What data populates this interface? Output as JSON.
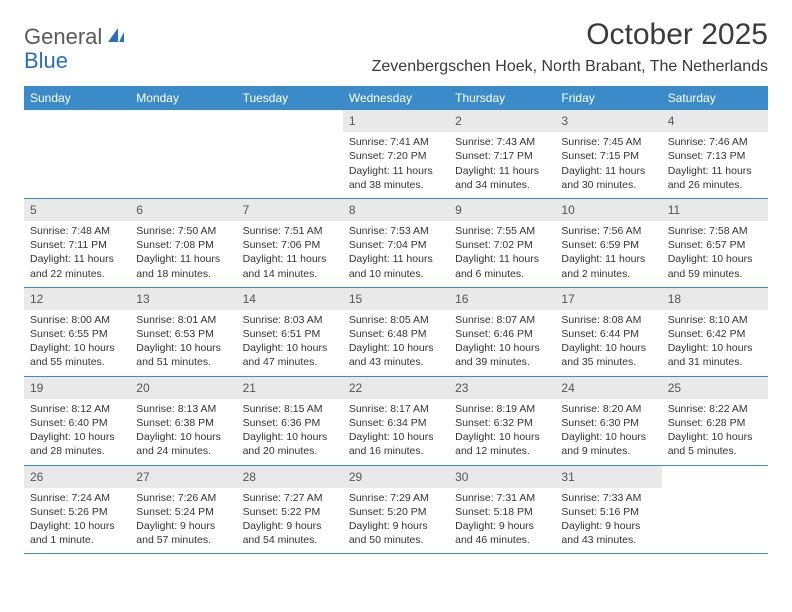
{
  "brand": {
    "text1": "General",
    "text2": "Blue"
  },
  "title": "October 2025",
  "location": "Zevenbergschen Hoek, North Brabant, The Netherlands",
  "colors": {
    "header_bg": "#3b8bc8",
    "header_text": "#ffffff",
    "daynum_bg": "#e9e9e9",
    "row_border": "#3b8bc8",
    "body_text": "#333333",
    "logo_gray": "#5a5a5a",
    "logo_blue": "#2a6fb5"
  },
  "weekdays": [
    "Sunday",
    "Monday",
    "Tuesday",
    "Wednesday",
    "Thursday",
    "Friday",
    "Saturday"
  ],
  "weeks": [
    [
      {
        "n": "",
        "sr": "",
        "ss": "",
        "dl": ""
      },
      {
        "n": "",
        "sr": "",
        "ss": "",
        "dl": ""
      },
      {
        "n": "",
        "sr": "",
        "ss": "",
        "dl": ""
      },
      {
        "n": "1",
        "sr": "Sunrise: 7:41 AM",
        "ss": "Sunset: 7:20 PM",
        "dl": "Daylight: 11 hours and 38 minutes."
      },
      {
        "n": "2",
        "sr": "Sunrise: 7:43 AM",
        "ss": "Sunset: 7:17 PM",
        "dl": "Daylight: 11 hours and 34 minutes."
      },
      {
        "n": "3",
        "sr": "Sunrise: 7:45 AM",
        "ss": "Sunset: 7:15 PM",
        "dl": "Daylight: 11 hours and 30 minutes."
      },
      {
        "n": "4",
        "sr": "Sunrise: 7:46 AM",
        "ss": "Sunset: 7:13 PM",
        "dl": "Daylight: 11 hours and 26 minutes."
      }
    ],
    [
      {
        "n": "5",
        "sr": "Sunrise: 7:48 AM",
        "ss": "Sunset: 7:11 PM",
        "dl": "Daylight: 11 hours and 22 minutes."
      },
      {
        "n": "6",
        "sr": "Sunrise: 7:50 AM",
        "ss": "Sunset: 7:08 PM",
        "dl": "Daylight: 11 hours and 18 minutes."
      },
      {
        "n": "7",
        "sr": "Sunrise: 7:51 AM",
        "ss": "Sunset: 7:06 PM",
        "dl": "Daylight: 11 hours and 14 minutes."
      },
      {
        "n": "8",
        "sr": "Sunrise: 7:53 AM",
        "ss": "Sunset: 7:04 PM",
        "dl": "Daylight: 11 hours and 10 minutes."
      },
      {
        "n": "9",
        "sr": "Sunrise: 7:55 AM",
        "ss": "Sunset: 7:02 PM",
        "dl": "Daylight: 11 hours and 6 minutes."
      },
      {
        "n": "10",
        "sr": "Sunrise: 7:56 AM",
        "ss": "Sunset: 6:59 PM",
        "dl": "Daylight: 11 hours and 2 minutes."
      },
      {
        "n": "11",
        "sr": "Sunrise: 7:58 AM",
        "ss": "Sunset: 6:57 PM",
        "dl": "Daylight: 10 hours and 59 minutes."
      }
    ],
    [
      {
        "n": "12",
        "sr": "Sunrise: 8:00 AM",
        "ss": "Sunset: 6:55 PM",
        "dl": "Daylight: 10 hours and 55 minutes."
      },
      {
        "n": "13",
        "sr": "Sunrise: 8:01 AM",
        "ss": "Sunset: 6:53 PM",
        "dl": "Daylight: 10 hours and 51 minutes."
      },
      {
        "n": "14",
        "sr": "Sunrise: 8:03 AM",
        "ss": "Sunset: 6:51 PM",
        "dl": "Daylight: 10 hours and 47 minutes."
      },
      {
        "n": "15",
        "sr": "Sunrise: 8:05 AM",
        "ss": "Sunset: 6:48 PM",
        "dl": "Daylight: 10 hours and 43 minutes."
      },
      {
        "n": "16",
        "sr": "Sunrise: 8:07 AM",
        "ss": "Sunset: 6:46 PM",
        "dl": "Daylight: 10 hours and 39 minutes."
      },
      {
        "n": "17",
        "sr": "Sunrise: 8:08 AM",
        "ss": "Sunset: 6:44 PM",
        "dl": "Daylight: 10 hours and 35 minutes."
      },
      {
        "n": "18",
        "sr": "Sunrise: 8:10 AM",
        "ss": "Sunset: 6:42 PM",
        "dl": "Daylight: 10 hours and 31 minutes."
      }
    ],
    [
      {
        "n": "19",
        "sr": "Sunrise: 8:12 AM",
        "ss": "Sunset: 6:40 PM",
        "dl": "Daylight: 10 hours and 28 minutes."
      },
      {
        "n": "20",
        "sr": "Sunrise: 8:13 AM",
        "ss": "Sunset: 6:38 PM",
        "dl": "Daylight: 10 hours and 24 minutes."
      },
      {
        "n": "21",
        "sr": "Sunrise: 8:15 AM",
        "ss": "Sunset: 6:36 PM",
        "dl": "Daylight: 10 hours and 20 minutes."
      },
      {
        "n": "22",
        "sr": "Sunrise: 8:17 AM",
        "ss": "Sunset: 6:34 PM",
        "dl": "Daylight: 10 hours and 16 minutes."
      },
      {
        "n": "23",
        "sr": "Sunrise: 8:19 AM",
        "ss": "Sunset: 6:32 PM",
        "dl": "Daylight: 10 hours and 12 minutes."
      },
      {
        "n": "24",
        "sr": "Sunrise: 8:20 AM",
        "ss": "Sunset: 6:30 PM",
        "dl": "Daylight: 10 hours and 9 minutes."
      },
      {
        "n": "25",
        "sr": "Sunrise: 8:22 AM",
        "ss": "Sunset: 6:28 PM",
        "dl": "Daylight: 10 hours and 5 minutes."
      }
    ],
    [
      {
        "n": "26",
        "sr": "Sunrise: 7:24 AM",
        "ss": "Sunset: 5:26 PM",
        "dl": "Daylight: 10 hours and 1 minute."
      },
      {
        "n": "27",
        "sr": "Sunrise: 7:26 AM",
        "ss": "Sunset: 5:24 PM",
        "dl": "Daylight: 9 hours and 57 minutes."
      },
      {
        "n": "28",
        "sr": "Sunrise: 7:27 AM",
        "ss": "Sunset: 5:22 PM",
        "dl": "Daylight: 9 hours and 54 minutes."
      },
      {
        "n": "29",
        "sr": "Sunrise: 7:29 AM",
        "ss": "Sunset: 5:20 PM",
        "dl": "Daylight: 9 hours and 50 minutes."
      },
      {
        "n": "30",
        "sr": "Sunrise: 7:31 AM",
        "ss": "Sunset: 5:18 PM",
        "dl": "Daylight: 9 hours and 46 minutes."
      },
      {
        "n": "31",
        "sr": "Sunrise: 7:33 AM",
        "ss": "Sunset: 5:16 PM",
        "dl": "Daylight: 9 hours and 43 minutes."
      },
      {
        "n": "",
        "sr": "",
        "ss": "",
        "dl": ""
      }
    ]
  ]
}
